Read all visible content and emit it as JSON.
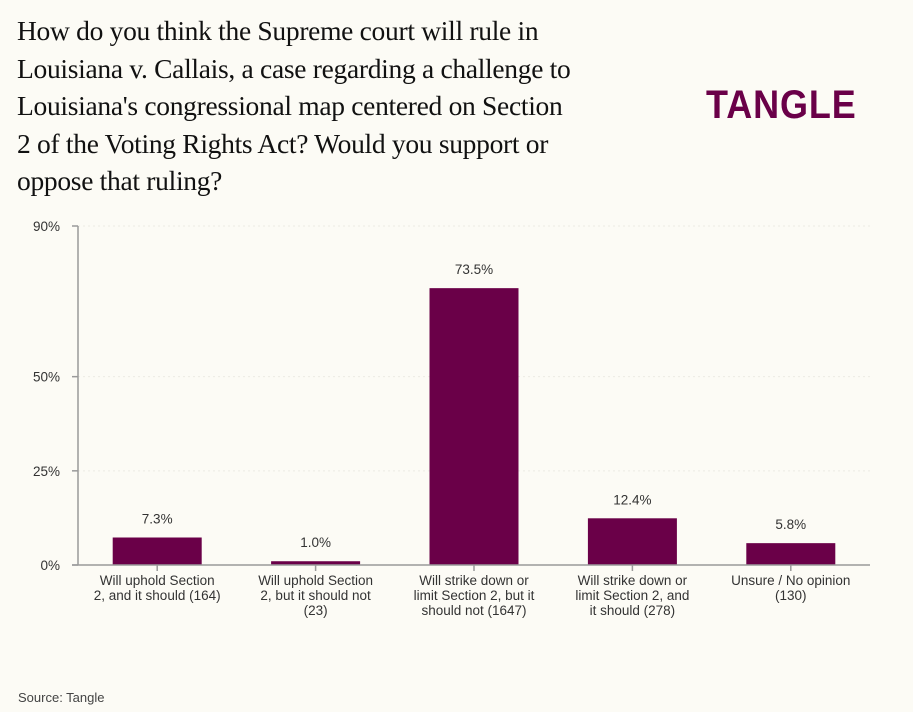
{
  "header": {
    "title": "How do you think the Supreme court will rule in Louisiana v. Callais, a case regarding a challenge to Louisiana's congressional map centered on Section 2 of the Voting Rights Act? Would you support or oppose that ruling?",
    "title_lines": [
      "How do you think the Supreme court will rule in",
      "Louisiana v. Callais, a case regarding a challenge to",
      "Louisiana's congressional map centered on Section",
      "2 of the Voting Rights Act? Would you support or",
      "oppose that ruling?"
    ],
    "logo": "TANGLE"
  },
  "footer": {
    "source": "Source: Tangle"
  },
  "colors": {
    "bar": "#6a0048",
    "axis": "#9a9a9a",
    "background": "#fcfbf5",
    "text": "#333333"
  },
  "chart_data": {
    "type": "bar",
    "title": "How do you think the Supreme court will rule in Louisiana v. Callais, a case regarding a challenge to Louisiana's congressional map centered on Section 2 of the Voting Rights Act? Would you support or oppose that ruling?",
    "xlabel": "",
    "ylabel": "",
    "ylim": [
      0,
      90
    ],
    "yticks": [
      0,
      25,
      50,
      90
    ],
    "ytick_labels": [
      "0%",
      "25%",
      "50%",
      "90%"
    ],
    "grid": false,
    "legend": "none",
    "categories": [
      "Will uphold Section 2, and it should (164)",
      "Will uphold Section 2, but it should not (23)",
      "Will strike down or limit Section 2, but it should not (1647)",
      "Will strike down or limit Section 2, and it should (278)",
      "Unsure / No opinion (130)"
    ],
    "category_lines": [
      [
        "Will uphold Section",
        "2, and it should (164)"
      ],
      [
        "Will uphold Section",
        "2, but it should not",
        "(23)"
      ],
      [
        "Will strike down or",
        "limit Section 2, but it",
        "should not (1647)"
      ],
      [
        "Will strike down or",
        "limit Section 2, and",
        "it should (278)"
      ],
      [
        "Unsure / No opinion",
        "(130)"
      ]
    ],
    "values": [
      7.3,
      1.0,
      73.5,
      12.4,
      5.8
    ],
    "data_labels": [
      "7.3%",
      "1.0%",
      "73.5%",
      "12.4%",
      "5.8%"
    ],
    "counts": [
      164,
      23,
      1647,
      278,
      130
    ]
  }
}
